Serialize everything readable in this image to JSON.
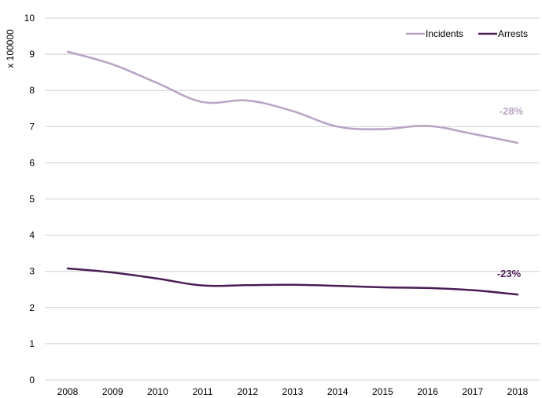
{
  "chart_data": {
    "type": "line",
    "title": "",
    "xlabel": "",
    "ylabel": "x 100000",
    "categories": [
      "2008",
      "2009",
      "2010",
      "2011",
      "2012",
      "2013",
      "2014",
      "2015",
      "2016",
      "2017",
      "2018"
    ],
    "ylim": [
      0,
      10
    ],
    "yticks": [
      "0",
      "1",
      "2",
      "3",
      "4",
      "5",
      "6",
      "7",
      "8",
      "9",
      "10"
    ],
    "grid": true,
    "legend": "top-right",
    "series": [
      {
        "name": "Incidents",
        "color": "#b8a3c3",
        "values": [
          9.07,
          8.72,
          8.2,
          7.68,
          7.72,
          7.43,
          7.0,
          6.93,
          7.02,
          6.8,
          6.55
        ],
        "annotation": "-28%"
      },
      {
        "name": "Arrests",
        "color": "#4b1c55",
        "values": [
          3.08,
          2.97,
          2.8,
          2.61,
          2.62,
          2.63,
          2.6,
          2.56,
          2.54,
          2.48,
          2.36
        ],
        "annotation": "-23%"
      }
    ]
  }
}
